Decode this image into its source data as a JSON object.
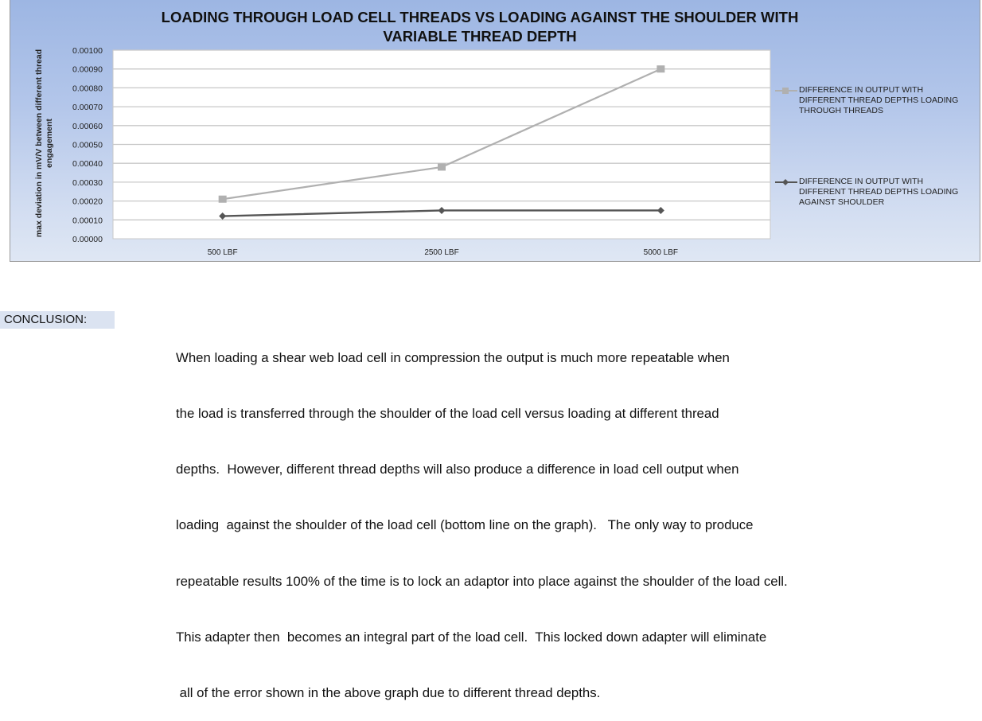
{
  "chart_data": {
    "type": "line",
    "title": "LOADING THROUGH LOAD CELL THREADS VS LOADING AGAINST THE SHOULDER WITH VARIABLE THREAD DEPTH",
    "title_lines": [
      "LOADING THROUGH LOAD CELL THREADS VS LOADING AGAINST THE SHOULDER WITH",
      "VARIABLE THREAD DEPTH"
    ],
    "xlabel": "",
    "ylabel": "max deviation in mV/V between different thread engagement",
    "ylabel_lines": [
      "max deviation in mV/V between different thread",
      "engagement"
    ],
    "categories": [
      "500 LBF",
      "2500 LBF",
      "5000 LBF"
    ],
    "series": [
      {
        "name": "DIFFERENCE IN OUTPUT WITH DIFFERENT THREAD DEPTHS LOADING THROUGH THREADS",
        "legend_lines": [
          "DIFFERENCE IN OUTPUT WITH",
          "DIFFERENT THREAD DEPTHS LOADING",
          "THROUGH THREADS"
        ],
        "values": [
          0.00021,
          0.00038,
          0.0009
        ],
        "color": "#b0b0b0",
        "marker": "square"
      },
      {
        "name": "DIFFERENCE IN OUTPUT WITH DIFFERENT THREAD DEPTHS LOADING AGAINST SHOULDER",
        "legend_lines": [
          "DIFFERENCE IN OUTPUT WITH",
          "DIFFERENT THREAD DEPTHS LOADING",
          "AGAINST SHOULDER"
        ],
        "values": [
          0.00012,
          0.00015,
          0.00015
        ],
        "color": "#555555",
        "marker": "diamond"
      }
    ],
    "ylim": [
      0,
      0.001
    ],
    "yticks": [
      "0.00000",
      "0.00010",
      "0.00020",
      "0.00030",
      "0.00040",
      "0.00050",
      "0.00060",
      "0.00070",
      "0.00080",
      "0.00090",
      "0.00100"
    ],
    "grid": true,
    "legend_position": "right"
  },
  "conclusion": {
    "label": "CONCLUSION:",
    "lines": [
      "When loading a shear web load cell in compression the output is much more repeatable when",
      "the load is transferred through the shoulder of the load cell versus loading at different thread",
      "depths.  However, different thread depths will also produce a difference in load cell output when",
      "loading  against the shoulder of the load cell (bottom line on the graph).   The only way to produce",
      "repeatable results 100% of the time is to lock an adaptor into place against the shoulder of the load cell.",
      "This adapter then  becomes an integral part of the load cell.  This locked down adapter will eliminate",
      " all of the error shown in the above graph due to different thread depths."
    ]
  }
}
